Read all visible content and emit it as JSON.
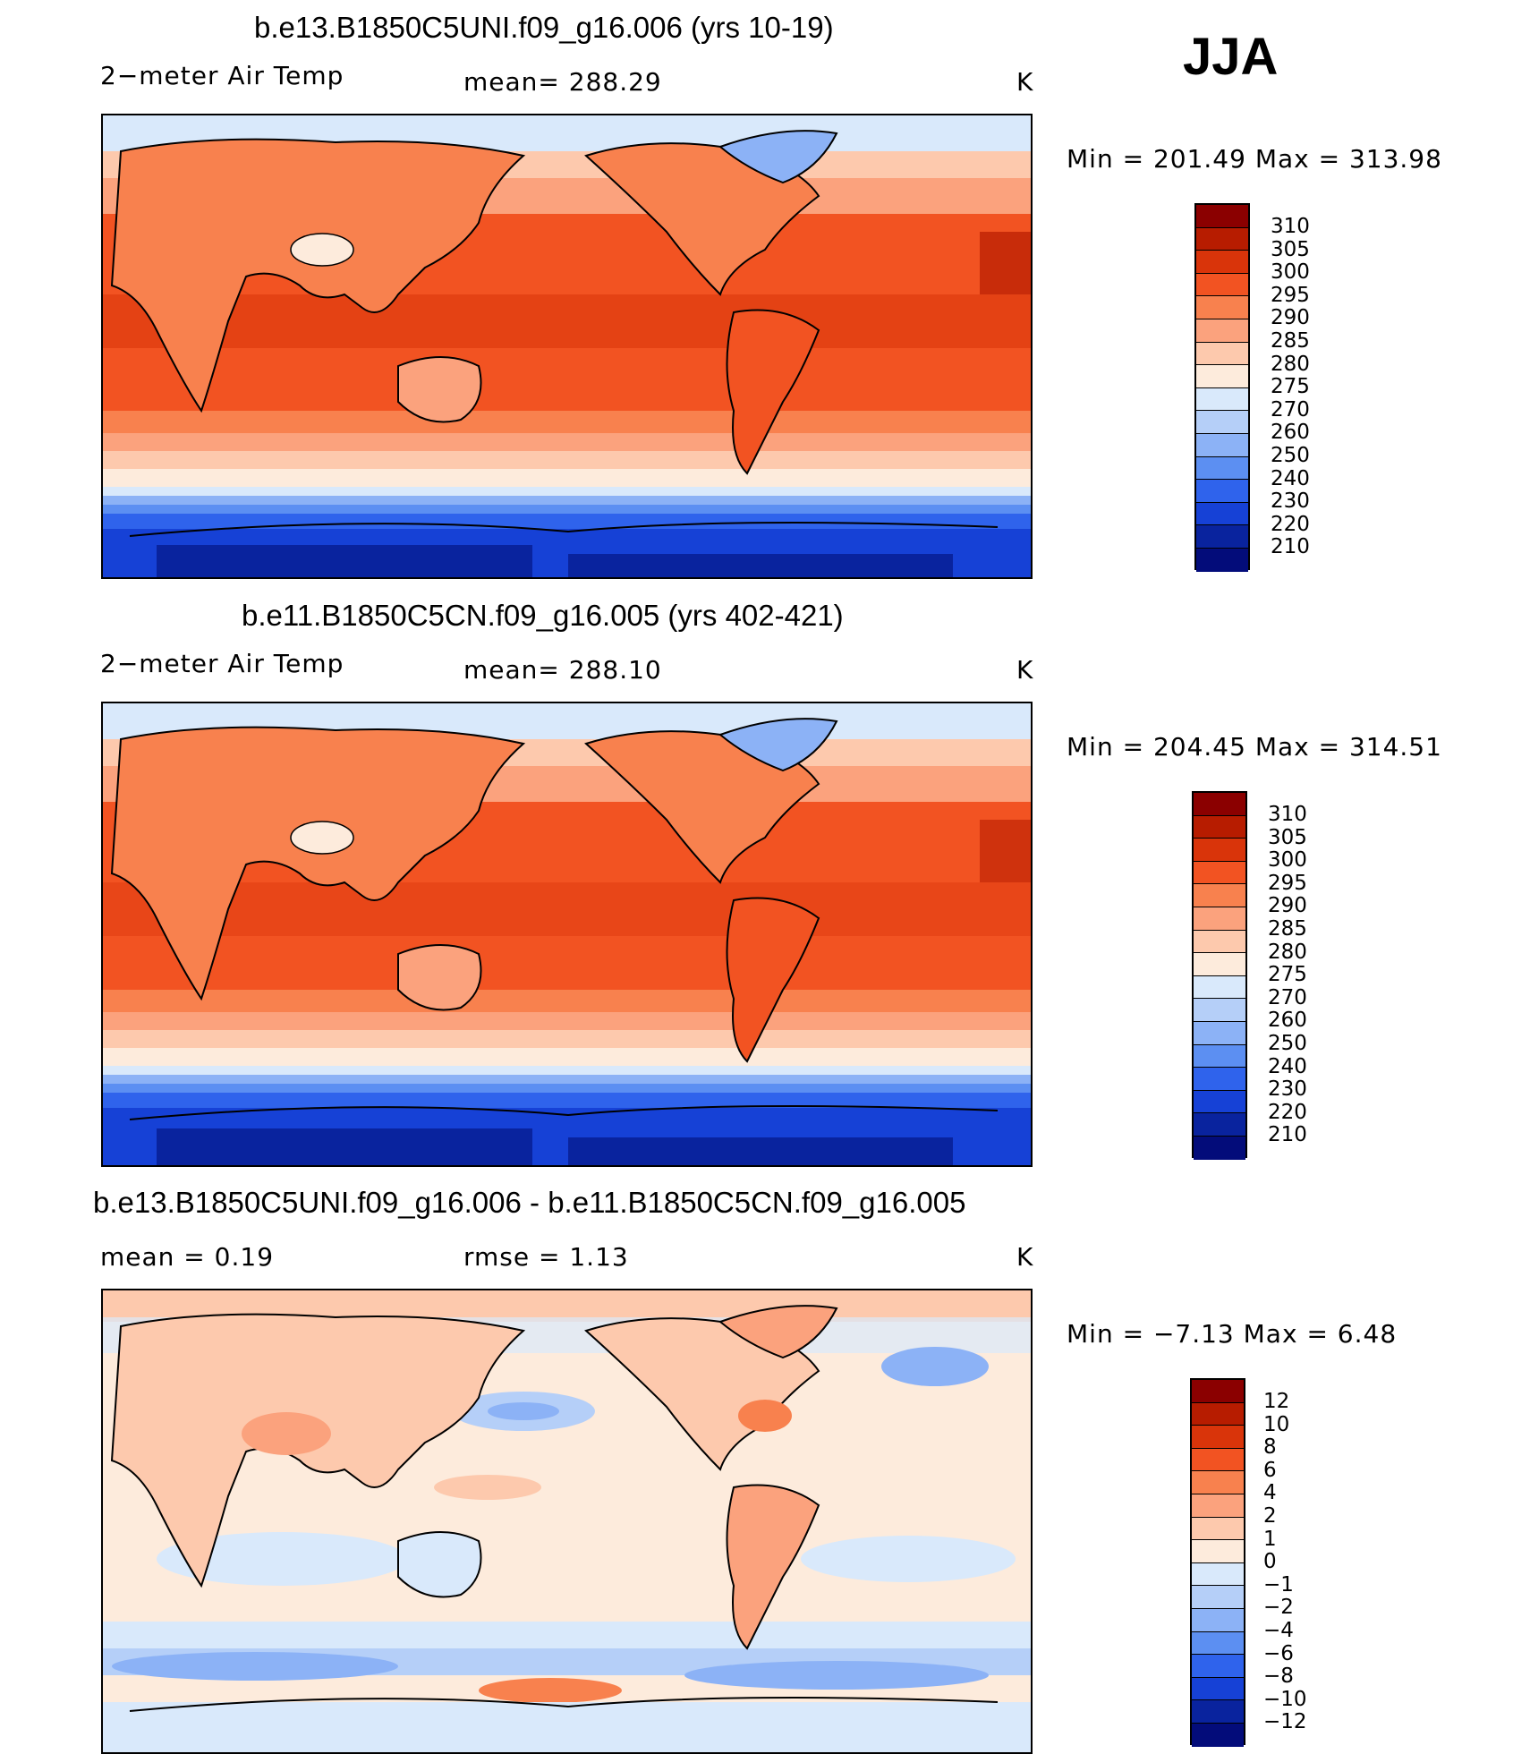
{
  "season": "JJA",
  "panels": [
    {
      "title": "b.e13.B1850C5UNI.f09_g16.006 (yrs 10-19)",
      "left_label": "2−meter Air Temp",
      "center_label": "mean=  288.29",
      "units": "K",
      "minmax": "Min  =  201.49  Max  =  313.98",
      "legend": [
        "310",
        "305",
        "300",
        "295",
        "290",
        "285",
        "280",
        "275",
        "270",
        "260",
        "250",
        "240",
        "230",
        "220",
        "210"
      ],
      "colors": [
        "#8b0000",
        "#b71c00",
        "#d9340a",
        "#f25322",
        "#f8814e",
        "#fba27d",
        "#fdc9ad",
        "#fdebdc",
        "#d9e9fb",
        "#b5cff8",
        "#8cb2f6",
        "#5c8ff2",
        "#2f63ec",
        "#1641d6",
        "#09239e",
        "#030c7a"
      ]
    },
    {
      "title": "b.e11.B1850C5CN.f09_g16.005 (yrs 402-421)",
      "left_label": "2−meter Air Temp",
      "center_label": "mean=  288.10",
      "units": "K",
      "minmax": "Min  =  204.45  Max  =  314.51",
      "legend": [
        "310",
        "305",
        "300",
        "295",
        "290",
        "285",
        "280",
        "275",
        "270",
        "260",
        "250",
        "240",
        "230",
        "220",
        "210"
      ],
      "colors": [
        "#8b0000",
        "#b71c00",
        "#d9340a",
        "#f25322",
        "#f8814e",
        "#fba27d",
        "#fdc9ad",
        "#fdebdc",
        "#d9e9fb",
        "#b5cff8",
        "#8cb2f6",
        "#5c8ff2",
        "#2f63ec",
        "#1641d6",
        "#09239e",
        "#030c7a"
      ]
    },
    {
      "title": "b.e13.B1850C5UNI.f09_g16.006 - b.e11.B1850C5CN.f09_g16.005",
      "left_label": "mean  =     0.19",
      "center_label": "rmse  =     1.13",
      "units": "K",
      "minmax": "Min  =    −7.13  Max  =      6.48",
      "legend": [
        "12",
        "10",
        "8",
        "6",
        "4",
        "2",
        "1",
        "0",
        "−1",
        "−2",
        "−4",
        "−6",
        "−8",
        "−10",
        "−12"
      ],
      "colors": [
        "#8b0000",
        "#b71c00",
        "#d9340a",
        "#f25322",
        "#f8814e",
        "#fba27d",
        "#fdc9ad",
        "#fdebdc",
        "#d9e9fb",
        "#b5cff8",
        "#8cb2f6",
        "#5c8ff2",
        "#2f63ec",
        "#1641d6",
        "#09239e",
        "#030c7a"
      ]
    }
  ]
}
